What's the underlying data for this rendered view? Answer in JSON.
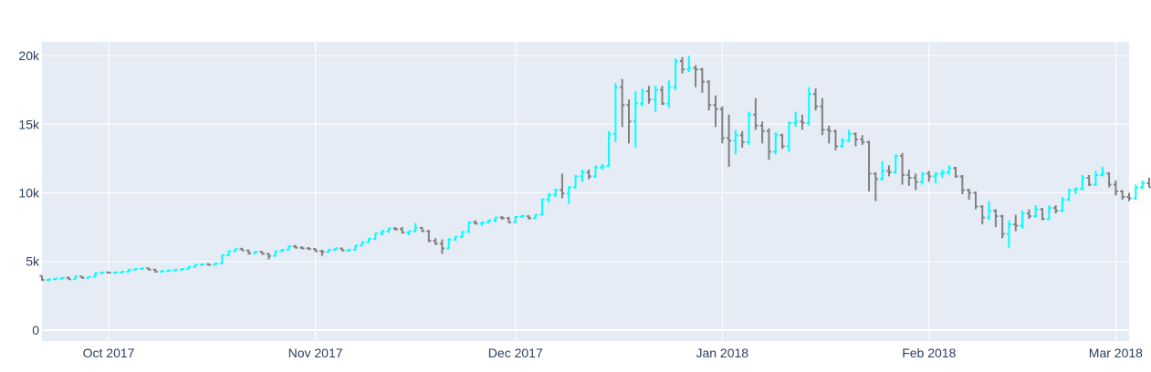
{
  "chart_data": {
    "type": "ohlc",
    "title": "",
    "xlabel": "",
    "ylabel": "",
    "x_start": "2017-09-21",
    "x_range": [
      "2017-09-21",
      "2018-03-03"
    ],
    "ylim": [
      -800,
      21000
    ],
    "y_ticks": [
      0,
      5000,
      10000,
      15000,
      20000
    ],
    "y_tick_labels": [
      "0",
      "5k",
      "10k",
      "15k",
      "20k"
    ],
    "x_ticks": [
      {
        "date": "2017-10-01",
        "label": "Oct 2017"
      },
      {
        "date": "2017-11-01",
        "label": "Nov 2017"
      },
      {
        "date": "2017-12-01",
        "label": "Dec 2017"
      },
      {
        "date": "2018-01-01",
        "label": "Jan 2018"
      },
      {
        "date": "2018-02-01",
        "label": "Feb 2018"
      },
      {
        "date": "2018-03-01",
        "label": "Mar 2018"
      }
    ],
    "grid": true,
    "colors": {
      "increasing": "#00ffff",
      "decreasing": "#808080",
      "plot_bg": "#e5ecf6",
      "grid": "#ffffff",
      "text": "#2a3f5f"
    },
    "series": [
      {
        "ohlc": [
          [
            3950,
            3950,
            3600,
            3650
          ],
          [
            3650,
            3720,
            3550,
            3700
          ],
          [
            3700,
            3780,
            3650,
            3750
          ],
          [
            3750,
            3850,
            3700,
            3800
          ],
          [
            3800,
            3900,
            3680,
            3700
          ],
          [
            3700,
            3950,
            3680,
            3900
          ],
          [
            3900,
            3960,
            3750,
            3800
          ],
          [
            3800,
            3900,
            3780,
            3880
          ],
          [
            3880,
            4200,
            3850,
            4150
          ],
          [
            4150,
            4250,
            4100,
            4200
          ],
          [
            4200,
            4260,
            4150,
            4180
          ],
          [
            4180,
            4250,
            4100,
            4200
          ],
          [
            4200,
            4300,
            4150,
            4250
          ],
          [
            4250,
            4450,
            4200,
            4400
          ],
          [
            4400,
            4500,
            4350,
            4450
          ],
          [
            4450,
            4550,
            4400,
            4500
          ],
          [
            4500,
            4550,
            4350,
            4400
          ],
          [
            4400,
            4450,
            4200,
            4250
          ],
          [
            4250,
            4350,
            4200,
            4300
          ],
          [
            4300,
            4400,
            4250,
            4350
          ],
          [
            4350,
            4450,
            4300,
            4400
          ],
          [
            4400,
            4500,
            4350,
            4450
          ],
          [
            4450,
            4650,
            4400,
            4600
          ],
          [
            4600,
            4800,
            4550,
            4750
          ],
          [
            4750,
            4850,
            4700,
            4800
          ],
          [
            4800,
            4850,
            4700,
            4750
          ],
          [
            4750,
            4900,
            4700,
            4850
          ],
          [
            4850,
            5500,
            4800,
            5450
          ],
          [
            5450,
            5800,
            5400,
            5750
          ],
          [
            5750,
            5950,
            5700,
            5900
          ],
          [
            5900,
            6000,
            5800,
            5800
          ],
          [
            5800,
            5850,
            5500,
            5600
          ],
          [
            5600,
            5750,
            5550,
            5700
          ],
          [
            5700,
            5750,
            5500,
            5550
          ],
          [
            5550,
            5600,
            5150,
            5400
          ],
          [
            5400,
            5800,
            5350,
            5750
          ],
          [
            5750,
            5900,
            5700,
            5850
          ],
          [
            5850,
            6150,
            5800,
            6100
          ],
          [
            6100,
            6200,
            5950,
            6000
          ],
          [
            6000,
            6100,
            5900,
            5950
          ],
          [
            5950,
            6050,
            5850,
            5900
          ],
          [
            5900,
            5950,
            5700,
            5750
          ],
          [
            5750,
            5850,
            5400,
            5700
          ],
          [
            5700,
            5900,
            5650,
            5850
          ],
          [
            5850,
            6000,
            5800,
            5950
          ],
          [
            5950,
            6000,
            5750,
            5800
          ],
          [
            5800,
            5900,
            5700,
            5850
          ],
          [
            5850,
            6200,
            5800,
            6150
          ],
          [
            6150,
            6450,
            6100,
            6400
          ],
          [
            6400,
            6700,
            6350,
            6650
          ],
          [
            6650,
            7100,
            6600,
            7050
          ],
          [
            7050,
            7300,
            6900,
            7200
          ],
          [
            7200,
            7450,
            7100,
            7400
          ],
          [
            7400,
            7500,
            7250,
            7350
          ],
          [
            7350,
            7500,
            7050,
            7100
          ],
          [
            7100,
            7250,
            6900,
            7200
          ],
          [
            7200,
            7800,
            7150,
            7450
          ],
          [
            7450,
            7500,
            7150,
            7200
          ],
          [
            7200,
            7300,
            6400,
            6500
          ],
          [
            6500,
            6700,
            6200,
            6300
          ],
          [
            6300,
            6600,
            5550,
            5950
          ],
          [
            5950,
            6700,
            5900,
            6600
          ],
          [
            6600,
            6850,
            6500,
            6800
          ],
          [
            6800,
            7200,
            6700,
            7150
          ],
          [
            7150,
            7900,
            7100,
            7850
          ],
          [
            7850,
            8000,
            7700,
            7750
          ],
          [
            7750,
            7900,
            7600,
            7850
          ],
          [
            7850,
            8050,
            7800,
            8000
          ],
          [
            8000,
            8250,
            7850,
            8200
          ],
          [
            8200,
            8300,
            8050,
            8150
          ],
          [
            8150,
            8250,
            7800,
            7850
          ],
          [
            7850,
            8300,
            7800,
            8250
          ],
          [
            8250,
            8400,
            8200,
            8300
          ],
          [
            8300,
            8350,
            8050,
            8150
          ],
          [
            8150,
            8450,
            8100,
            8400
          ],
          [
            8400,
            9600,
            8350,
            9500
          ],
          [
            9500,
            10000,
            9300,
            9850
          ],
          [
            9850,
            10300,
            9700,
            10200
          ],
          [
            10200,
            11400,
            9600,
            9950
          ],
          [
            9950,
            10500,
            9200,
            10400
          ],
          [
            10400,
            11300,
            10300,
            11200
          ],
          [
            11200,
            11700,
            10800,
            11500
          ],
          [
            11500,
            11700,
            11000,
            11200
          ],
          [
            11200,
            12000,
            11100,
            11850
          ],
          [
            11850,
            12100,
            11700,
            11950
          ],
          [
            11950,
            14500,
            11900,
            14300
          ],
          [
            14300,
            18000,
            13700,
            17700
          ],
          [
            17700,
            18300,
            14800,
            16400
          ],
          [
            16400,
            16800,
            13600,
            15200
          ],
          [
            15200,
            17400,
            13300,
            16500
          ],
          [
            16500,
            17600,
            16300,
            17400
          ],
          [
            17400,
            17800,
            16500,
            16800
          ],
          [
            16800,
            17800,
            15900,
            17500
          ],
          [
            17500,
            17800,
            16400,
            16500
          ],
          [
            16500,
            18200,
            16200,
            17700
          ],
          [
            17700,
            19800,
            17500,
            19600
          ],
          [
            19600,
            19900,
            18700,
            19000
          ],
          [
            19000,
            20000,
            18800,
            19100
          ],
          [
            19100,
            19300,
            17700,
            19000
          ],
          [
            19000,
            19100,
            17300,
            18100
          ],
          [
            18100,
            18200,
            16000,
            16400
          ],
          [
            16400,
            17100,
            14800,
            16100
          ],
          [
            16100,
            16300,
            13600,
            14000
          ],
          [
            14000,
            15700,
            11900,
            13800
          ],
          [
            13800,
            14600,
            12800,
            14200
          ],
          [
            14200,
            14500,
            13300,
            13700
          ],
          [
            13700,
            15900,
            13500,
            15700
          ],
          [
            15700,
            16900,
            14600,
            14900
          ],
          [
            14900,
            15200,
            13600,
            14500
          ],
          [
            14500,
            14700,
            12400,
            13000
          ],
          [
            13000,
            14400,
            12800,
            14200
          ],
          [
            14200,
            14300,
            13200,
            13400
          ],
          [
            13400,
            15200,
            13000,
            15100
          ],
          [
            15100,
            15900,
            14800,
            15200
          ],
          [
            15200,
            15700,
            14600,
            15100
          ],
          [
            15100,
            17700,
            14900,
            17200
          ],
          [
            17200,
            17600,
            16000,
            16300
          ],
          [
            16300,
            16900,
            14200,
            14600
          ],
          [
            14600,
            14900,
            13600,
            14500
          ],
          [
            14500,
            14600,
            13100,
            13400
          ],
          [
            13400,
            14000,
            13300,
            13800
          ],
          [
            13800,
            14600,
            13700,
            14300
          ],
          [
            14300,
            14400,
            13400,
            13900
          ],
          [
            13900,
            14200,
            13500,
            13700
          ],
          [
            13700,
            13800,
            10100,
            11400
          ],
          [
            11400,
            11500,
            9400,
            11000
          ],
          [
            11000,
            12300,
            10900,
            11600
          ],
          [
            11600,
            12000,
            11200,
            11500
          ],
          [
            11500,
            12800,
            11400,
            12700
          ],
          [
            12700,
            12900,
            10600,
            11300
          ],
          [
            11300,
            11700,
            10500,
            11100
          ],
          [
            11100,
            11400,
            10200,
            10800
          ],
          [
            10800,
            11500,
            10600,
            11400
          ],
          [
            11400,
            11600,
            10800,
            11200
          ],
          [
            11200,
            11500,
            10700,
            11400
          ],
          [
            11400,
            11700,
            11100,
            11500
          ],
          [
            11500,
            12000,
            11300,
            11800
          ],
          [
            11800,
            11900,
            11100,
            11200
          ],
          [
            11200,
            11300,
            9900,
            10200
          ],
          [
            10200,
            10300,
            9500,
            10000
          ],
          [
            10000,
            10100,
            8800,
            9000
          ],
          [
            9000,
            9100,
            7700,
            8200
          ],
          [
            8200,
            9400,
            8000,
            8700
          ],
          [
            8700,
            8800,
            7500,
            8300
          ],
          [
            8300,
            8400,
            6700,
            7000
          ],
          [
            7000,
            8000,
            6000,
            7700
          ],
          [
            7700,
            8400,
            7200,
            7600
          ],
          [
            7600,
            8700,
            7400,
            8500
          ],
          [
            8500,
            8800,
            8100,
            8300
          ],
          [
            8300,
            9100,
            8200,
            8800
          ],
          [
            8800,
            8900,
            8000,
            8100
          ],
          [
            8100,
            9100,
            8000,
            8900
          ],
          [
            8900,
            9100,
            8500,
            8700
          ],
          [
            8700,
            9700,
            8600,
            9500
          ],
          [
            9500,
            10300,
            9400,
            10200
          ],
          [
            10200,
            10400,
            9900,
            10300
          ],
          [
            10300,
            11300,
            10200,
            11100
          ],
          [
            11100,
            11300,
            10500,
            10600
          ],
          [
            10600,
            11600,
            10500,
            11300
          ],
          [
            11300,
            11900,
            11200,
            11400
          ],
          [
            11400,
            11500,
            10400,
            10600
          ],
          [
            10600,
            10900,
            9800,
            10100
          ],
          [
            10100,
            10200,
            9500,
            9700
          ],
          [
            9700,
            10000,
            9400,
            9600
          ],
          [
            9600,
            10600,
            9500,
            10400
          ],
          [
            10400,
            10900,
            10300,
            10700
          ],
          [
            10700,
            11100,
            10400,
            10400
          ],
          [
            10400,
            11000,
            10300,
            10900
          ],
          [
            10900,
            11200,
            10700,
            11100
          ]
        ]
      }
    ]
  }
}
